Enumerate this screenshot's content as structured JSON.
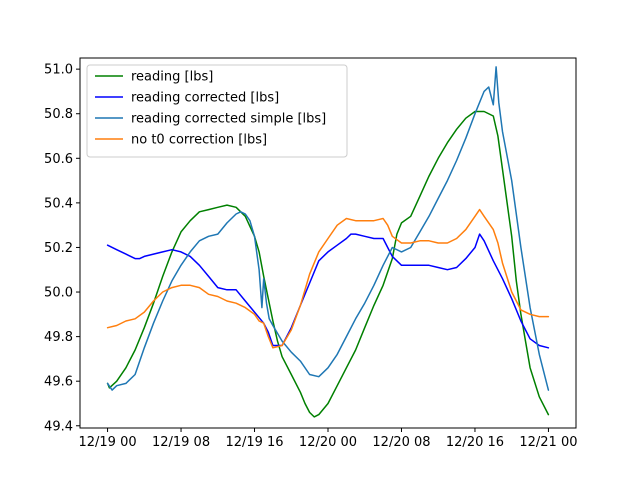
{
  "chart_data": {
    "type": "line",
    "title": "",
    "xlabel": "",
    "ylabel": "",
    "x_unit": "hours since 12/19 00",
    "xlim": [
      -3,
      51
    ],
    "ylim": [
      49.39,
      51.05
    ],
    "x_ticks": [
      {
        "value": 0,
        "label": "12/19 00"
      },
      {
        "value": 8,
        "label": "12/19 08"
      },
      {
        "value": 16,
        "label": "12/19 16"
      },
      {
        "value": 24,
        "label": "12/20 00"
      },
      {
        "value": 32,
        "label": "12/20 08"
      },
      {
        "value": 40,
        "label": "12/20 16"
      },
      {
        "value": 48,
        "label": "12/21 00"
      }
    ],
    "y_ticks": [
      {
        "value": 49.4,
        "label": "49.4"
      },
      {
        "value": 49.6,
        "label": "49.6"
      },
      {
        "value": 49.8,
        "label": "49.8"
      },
      {
        "value": 50.0,
        "label": "50.0"
      },
      {
        "value": 50.2,
        "label": "50.2"
      },
      {
        "value": 50.4,
        "label": "50.4"
      },
      {
        "value": 50.6,
        "label": "50.6"
      },
      {
        "value": 50.8,
        "label": "50.8"
      },
      {
        "value": 51.0,
        "label": "51.0"
      }
    ],
    "grid": false,
    "legend_position": "top-left",
    "series": [
      {
        "name": "reading [lbs]",
        "color": "#008000",
        "points": [
          [
            0,
            49.59
          ],
          [
            0.2,
            49.57
          ],
          [
            1,
            49.6
          ],
          [
            2,
            49.66
          ],
          [
            3,
            49.74
          ],
          [
            4,
            49.84
          ],
          [
            5,
            49.95
          ],
          [
            6,
            50.07
          ],
          [
            7,
            50.18
          ],
          [
            8,
            50.27
          ],
          [
            9,
            50.32
          ],
          [
            10,
            50.36
          ],
          [
            11,
            50.37
          ],
          [
            12,
            50.38
          ],
          [
            13,
            50.39
          ],
          [
            14,
            50.38
          ],
          [
            15,
            50.34
          ],
          [
            16,
            50.25
          ],
          [
            16.5,
            50.18
          ],
          [
            17,
            50.07
          ],
          [
            17.5,
            49.97
          ],
          [
            18,
            49.87
          ],
          [
            18.5,
            49.78
          ],
          [
            19,
            49.71
          ],
          [
            20,
            49.63
          ],
          [
            21,
            49.55
          ],
          [
            21.5,
            49.5
          ],
          [
            22,
            49.46
          ],
          [
            22.5,
            49.44
          ],
          [
            23,
            49.45
          ],
          [
            24,
            49.5
          ],
          [
            25,
            49.58
          ],
          [
            26,
            49.66
          ],
          [
            27,
            49.74
          ],
          [
            28,
            49.84
          ],
          [
            29,
            49.94
          ],
          [
            30,
            50.03
          ],
          [
            31,
            50.15
          ],
          [
            31.5,
            50.26
          ],
          [
            32,
            50.31
          ],
          [
            33,
            50.34
          ],
          [
            34,
            50.43
          ],
          [
            35,
            50.52
          ],
          [
            36,
            50.6
          ],
          [
            37,
            50.67
          ],
          [
            38,
            50.73
          ],
          [
            39,
            50.78
          ],
          [
            40,
            50.81
          ],
          [
            41,
            50.81
          ],
          [
            42,
            50.79
          ],
          [
            42.5,
            50.7
          ],
          [
            43,
            50.55
          ],
          [
            43.5,
            50.4
          ],
          [
            44,
            50.25
          ],
          [
            44.5,
            50.05
          ],
          [
            45,
            49.9
          ],
          [
            45.5,
            49.78
          ],
          [
            46,
            49.66
          ],
          [
            47,
            49.53
          ],
          [
            48,
            49.45
          ]
        ]
      },
      {
        "name": "reading corrected [lbs]",
        "color": "#0000ff",
        "points": [
          [
            0,
            50.21
          ],
          [
            1,
            50.19
          ],
          [
            2,
            50.17
          ],
          [
            3,
            50.15
          ],
          [
            3.5,
            50.15
          ],
          [
            4,
            50.16
          ],
          [
            5,
            50.17
          ],
          [
            6,
            50.18
          ],
          [
            7,
            50.19
          ],
          [
            8,
            50.18
          ],
          [
            9,
            50.16
          ],
          [
            10,
            50.12
          ],
          [
            11,
            50.07
          ],
          [
            12,
            50.02
          ],
          [
            13,
            50.01
          ],
          [
            14,
            50.01
          ],
          [
            15,
            49.96
          ],
          [
            16,
            49.91
          ],
          [
            17,
            49.86
          ],
          [
            17.5,
            49.82
          ],
          [
            18,
            49.76
          ],
          [
            19,
            49.76
          ],
          [
            20,
            49.84
          ],
          [
            21,
            49.94
          ],
          [
            22,
            50.04
          ],
          [
            23,
            50.14
          ],
          [
            24,
            50.18
          ],
          [
            25,
            50.21
          ],
          [
            26,
            50.24
          ],
          [
            26.5,
            50.26
          ],
          [
            27,
            50.26
          ],
          [
            28,
            50.25
          ],
          [
            29,
            50.24
          ],
          [
            30,
            50.24
          ],
          [
            30.5,
            50.2
          ],
          [
            31,
            50.16
          ],
          [
            32,
            50.12
          ],
          [
            33,
            50.12
          ],
          [
            34,
            50.12
          ],
          [
            35,
            50.12
          ],
          [
            36,
            50.11
          ],
          [
            37,
            50.1
          ],
          [
            38,
            50.11
          ],
          [
            39,
            50.15
          ],
          [
            40,
            50.2
          ],
          [
            40.5,
            50.26
          ],
          [
            41,
            50.23
          ],
          [
            42,
            50.14
          ],
          [
            43,
            50.06
          ],
          [
            44,
            49.97
          ],
          [
            45,
            49.87
          ],
          [
            46,
            49.79
          ],
          [
            47,
            49.76
          ],
          [
            48,
            49.75
          ]
        ]
      },
      {
        "name": "reading corrected simple [lbs]",
        "color": "#1f77b4",
        "points": [
          [
            0,
            49.59
          ],
          [
            0.5,
            49.56
          ],
          [
            1,
            49.58
          ],
          [
            2,
            49.59
          ],
          [
            3,
            49.63
          ],
          [
            4,
            49.75
          ],
          [
            5,
            49.86
          ],
          [
            6,
            49.96
          ],
          [
            7,
            50.05
          ],
          [
            8,
            50.12
          ],
          [
            9,
            50.18
          ],
          [
            10,
            50.23
          ],
          [
            11,
            50.25
          ],
          [
            12,
            50.26
          ],
          [
            13,
            50.31
          ],
          [
            14,
            50.35
          ],
          [
            14.5,
            50.36
          ],
          [
            15,
            50.35
          ],
          [
            15.5,
            50.32
          ],
          [
            16,
            50.25
          ],
          [
            16.5,
            50.1
          ],
          [
            16.8,
            49.93
          ],
          [
            17,
            50.06
          ],
          [
            17.3,
            49.95
          ],
          [
            17.6,
            49.88
          ],
          [
            18,
            49.85
          ],
          [
            19,
            49.78
          ],
          [
            20,
            49.73
          ],
          [
            21,
            49.69
          ],
          [
            22,
            49.63
          ],
          [
            23,
            49.62
          ],
          [
            24,
            49.66
          ],
          [
            25,
            49.72
          ],
          [
            26,
            49.8
          ],
          [
            27,
            49.88
          ],
          [
            28,
            49.95
          ],
          [
            29,
            50.03
          ],
          [
            30,
            50.12
          ],
          [
            31,
            50.2
          ],
          [
            32,
            50.18
          ],
          [
            33,
            50.2
          ],
          [
            34,
            50.27
          ],
          [
            35,
            50.34
          ],
          [
            36,
            50.42
          ],
          [
            37,
            50.5
          ],
          [
            38,
            50.59
          ],
          [
            39,
            50.69
          ],
          [
            40,
            50.8
          ],
          [
            41,
            50.9
          ],
          [
            41.5,
            50.92
          ],
          [
            42,
            50.84
          ],
          [
            42.3,
            51.01
          ],
          [
            42.6,
            50.85
          ],
          [
            43,
            50.72
          ],
          [
            44,
            50.5
          ],
          [
            45,
            50.2
          ],
          [
            46,
            49.93
          ],
          [
            47,
            49.72
          ],
          [
            48,
            49.56
          ]
        ]
      },
      {
        "name": "no t0 correction [lbs]",
        "color": "#ff7f0e",
        "points": [
          [
            0,
            49.84
          ],
          [
            1,
            49.85
          ],
          [
            2,
            49.87
          ],
          [
            3,
            49.88
          ],
          [
            4,
            49.91
          ],
          [
            5,
            49.96
          ],
          [
            6,
            50.0
          ],
          [
            7,
            50.02
          ],
          [
            8,
            50.03
          ],
          [
            9,
            50.03
          ],
          [
            10,
            50.02
          ],
          [
            11,
            49.99
          ],
          [
            12,
            49.98
          ],
          [
            13,
            49.96
          ],
          [
            14,
            49.95
          ],
          [
            15,
            49.93
          ],
          [
            16,
            49.9
          ],
          [
            16.5,
            49.87
          ],
          [
            17,
            49.86
          ],
          [
            17.5,
            49.8
          ],
          [
            18,
            49.75
          ],
          [
            19,
            49.76
          ],
          [
            20,
            49.83
          ],
          [
            21,
            49.94
          ],
          [
            22,
            50.08
          ],
          [
            23,
            50.18
          ],
          [
            24,
            50.24
          ],
          [
            25,
            50.3
          ],
          [
            26,
            50.33
          ],
          [
            27,
            50.32
          ],
          [
            28,
            50.32
          ],
          [
            29,
            50.32
          ],
          [
            30,
            50.33
          ],
          [
            30.5,
            50.3
          ],
          [
            31,
            50.25
          ],
          [
            32,
            50.22
          ],
          [
            33,
            50.22
          ],
          [
            34,
            50.23
          ],
          [
            35,
            50.23
          ],
          [
            36,
            50.22
          ],
          [
            37,
            50.22
          ],
          [
            38,
            50.24
          ],
          [
            39,
            50.28
          ],
          [
            40,
            50.34
          ],
          [
            40.5,
            50.37
          ],
          [
            41,
            50.34
          ],
          [
            42,
            50.28
          ],
          [
            42.5,
            50.22
          ],
          [
            43,
            50.13
          ],
          [
            44,
            50.0
          ],
          [
            45,
            49.92
          ],
          [
            46,
            49.9
          ],
          [
            47,
            49.89
          ],
          [
            48,
            49.89
          ]
        ]
      }
    ]
  }
}
